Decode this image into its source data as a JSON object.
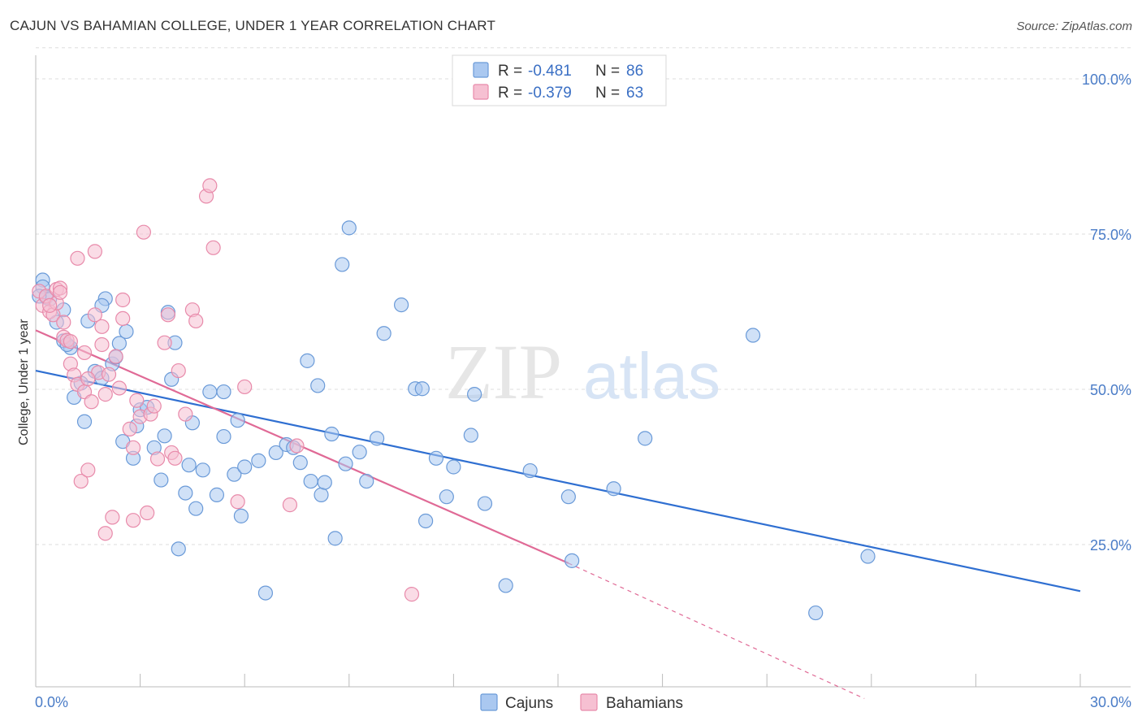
{
  "title": "CAJUN VS BAHAMIAN COLLEGE, UNDER 1 YEAR CORRELATION CHART",
  "source": "Source: ZipAtlas.com",
  "watermark": {
    "zip": "ZIP",
    "atlas": "atlas"
  },
  "legend": {
    "rows": [
      {
        "r_label": "R =",
        "r_value": "-0.481",
        "n_label": "N =",
        "n_value": "86"
      },
      {
        "r_label": "R =",
        "r_value": "-0.379",
        "n_label": "N =",
        "n_value": "63"
      }
    ]
  },
  "colors": {
    "cajun_fill": "#aac8f0",
    "cajun_stroke": "#6a9ad8",
    "cajun_line": "#2f6fd1",
    "bahamian_fill": "#f6c0d2",
    "bahamian_stroke": "#e88aaa",
    "bahamian_line": "#e06a96",
    "grid": "#dddddd",
    "tick_text": "#4a7cc7"
  },
  "chart_data": {
    "type": "scatter",
    "title": "CAJUN VS BAHAMIAN COLLEGE, UNDER 1 YEAR CORRELATION CHART",
    "xlabel": "",
    "ylabel": "College, Under 1 year",
    "xlim": [
      0,
      30
    ],
    "ylim": [
      0,
      105
    ],
    "x_ticks": [
      0,
      3,
      6,
      9,
      12,
      15,
      18,
      21,
      24,
      27,
      30
    ],
    "x_tick_labels": [
      {
        "x": 0,
        "label": "0.0%"
      },
      {
        "x": 30,
        "label": "30.0%"
      }
    ],
    "y_ticks": [
      {
        "y": 25,
        "label": "25.0%"
      },
      {
        "y": 50,
        "label": "50.0%"
      },
      {
        "y": 75,
        "label": "75.0%"
      },
      {
        "y": 100,
        "label": "100.0%"
      }
    ],
    "grid": true,
    "legend_position": "top-center",
    "series": [
      {
        "name": "Cajuns",
        "r": -0.481,
        "n": 86,
        "trend": {
          "x": [
            0,
            30
          ],
          "y": [
            53.0,
            17.5
          ]
        },
        "points": [
          [
            0.2,
            67.6
          ],
          [
            0.2,
            66.5
          ],
          [
            0.3,
            64.8
          ],
          [
            0.4,
            64.5
          ],
          [
            0.6,
            60.8
          ],
          [
            0.8,
            57.8
          ],
          [
            1.0,
            56.7
          ],
          [
            0.9,
            57.2
          ],
          [
            0.8,
            62.8
          ],
          [
            1.1,
            48.7
          ],
          [
            1.5,
            61.0
          ],
          [
            1.4,
            44.8
          ],
          [
            1.7,
            52.9
          ],
          [
            1.9,
            51.8
          ],
          [
            2.0,
            64.6
          ],
          [
            1.9,
            63.5
          ],
          [
            2.2,
            54.1
          ],
          [
            2.3,
            55.2
          ],
          [
            2.4,
            57.4
          ],
          [
            2.6,
            59.3
          ],
          [
            2.5,
            41.6
          ],
          [
            2.8,
            38.9
          ],
          [
            2.9,
            44.1
          ],
          [
            3.0,
            46.7
          ],
          [
            3.2,
            47.1
          ],
          [
            3.4,
            40.6
          ],
          [
            3.6,
            35.4
          ],
          [
            3.7,
            42.5
          ],
          [
            3.8,
            62.4
          ],
          [
            3.9,
            51.6
          ],
          [
            4.0,
            57.5
          ],
          [
            4.1,
            24.3
          ],
          [
            4.3,
            33.3
          ],
          [
            4.4,
            37.8
          ],
          [
            4.5,
            44.6
          ],
          [
            4.6,
            30.8
          ],
          [
            4.8,
            37.0
          ],
          [
            5.0,
            49.6
          ],
          [
            5.2,
            33.0
          ],
          [
            5.4,
            49.6
          ],
          [
            5.4,
            42.4
          ],
          [
            5.7,
            36.3
          ],
          [
            5.8,
            45.0
          ],
          [
            5.9,
            29.6
          ],
          [
            6.0,
            37.5
          ],
          [
            6.4,
            38.5
          ],
          [
            6.6,
            17.2
          ],
          [
            6.9,
            39.8
          ],
          [
            7.2,
            41.1
          ],
          [
            7.4,
            40.6
          ],
          [
            7.6,
            38.2
          ],
          [
            7.8,
            54.6
          ],
          [
            7.9,
            35.2
          ],
          [
            8.1,
            50.6
          ],
          [
            8.2,
            33.0
          ],
          [
            8.3,
            35.0
          ],
          [
            8.5,
            42.8
          ],
          [
            8.6,
            26.0
          ],
          [
            8.8,
            70.1
          ],
          [
            8.9,
            38.0
          ],
          [
            9.0,
            76.0
          ],
          [
            9.3,
            39.9
          ],
          [
            9.5,
            35.2
          ],
          [
            9.8,
            42.1
          ],
          [
            10.0,
            59.0
          ],
          [
            10.5,
            63.6
          ],
          [
            10.9,
            50.1
          ],
          [
            11.1,
            50.1
          ],
          [
            11.2,
            28.8
          ],
          [
            11.5,
            38.9
          ],
          [
            11.8,
            32.7
          ],
          [
            12.0,
            37.5
          ],
          [
            12.5,
            42.6
          ],
          [
            12.6,
            49.2
          ],
          [
            12.9,
            31.6
          ],
          [
            13.5,
            18.4
          ],
          [
            14.2,
            36.9
          ],
          [
            15.3,
            32.7
          ],
          [
            15.4,
            22.4
          ],
          [
            16.6,
            34.0
          ],
          [
            17.5,
            42.1
          ],
          [
            20.6,
            58.7
          ],
          [
            22.4,
            14.0
          ],
          [
            23.9,
            23.1
          ],
          [
            0.1,
            65.0
          ],
          [
            1.3,
            51.0
          ]
        ]
      },
      {
        "name": "Bahamians",
        "r": -0.379,
        "n": 63,
        "trend": {
          "x": [
            0,
            15.3
          ],
          "y": [
            59.5,
            22.0
          ]
        },
        "trend_dashed": {
          "x": [
            15.3,
            23.8
          ],
          "y": [
            22.0,
            0.2
          ]
        },
        "points": [
          [
            0.1,
            65.8
          ],
          [
            0.2,
            63.5
          ],
          [
            0.3,
            65.0
          ],
          [
            0.4,
            62.5
          ],
          [
            0.5,
            62.0
          ],
          [
            0.6,
            63.9
          ],
          [
            0.6,
            66.1
          ],
          [
            0.7,
            66.3
          ],
          [
            0.7,
            65.6
          ],
          [
            0.8,
            60.8
          ],
          [
            0.8,
            58.4
          ],
          [
            0.9,
            57.9
          ],
          [
            1.0,
            57.7
          ],
          [
            1.0,
            54.1
          ],
          [
            1.1,
            52.3
          ],
          [
            1.2,
            50.8
          ],
          [
            1.2,
            71.1
          ],
          [
            1.3,
            35.2
          ],
          [
            1.4,
            49.6
          ],
          [
            1.4,
            55.9
          ],
          [
            1.5,
            37.0
          ],
          [
            1.6,
            48.0
          ],
          [
            1.7,
            62.0
          ],
          [
            1.7,
            72.2
          ],
          [
            1.8,
            52.7
          ],
          [
            1.9,
            60.1
          ],
          [
            1.9,
            57.2
          ],
          [
            2.0,
            26.8
          ],
          [
            2.0,
            49.2
          ],
          [
            2.1,
            52.4
          ],
          [
            2.2,
            29.4
          ],
          [
            2.3,
            55.3
          ],
          [
            2.4,
            50.2
          ],
          [
            2.5,
            64.4
          ],
          [
            2.5,
            61.4
          ],
          [
            2.7,
            43.6
          ],
          [
            2.8,
            28.9
          ],
          [
            2.8,
            40.6
          ],
          [
            3.0,
            45.6
          ],
          [
            3.1,
            75.3
          ],
          [
            3.2,
            30.1
          ],
          [
            3.3,
            46.0
          ],
          [
            3.5,
            38.8
          ],
          [
            3.7,
            57.5
          ],
          [
            3.8,
            62.0
          ],
          [
            3.9,
            39.8
          ],
          [
            4.0,
            38.9
          ],
          [
            4.3,
            46.0
          ],
          [
            4.5,
            62.8
          ],
          [
            4.6,
            61.0
          ],
          [
            4.9,
            81.1
          ],
          [
            5.0,
            82.8
          ],
          [
            5.1,
            72.8
          ],
          [
            5.8,
            31.9
          ],
          [
            6.0,
            50.4
          ],
          [
            7.3,
            31.4
          ],
          [
            7.5,
            40.9
          ],
          [
            10.8,
            17.0
          ],
          [
            0.4,
            63.5
          ],
          [
            1.5,
            51.7
          ],
          [
            2.9,
            48.2
          ],
          [
            3.4,
            47.3
          ],
          [
            4.1,
            53.0
          ]
        ]
      }
    ]
  }
}
